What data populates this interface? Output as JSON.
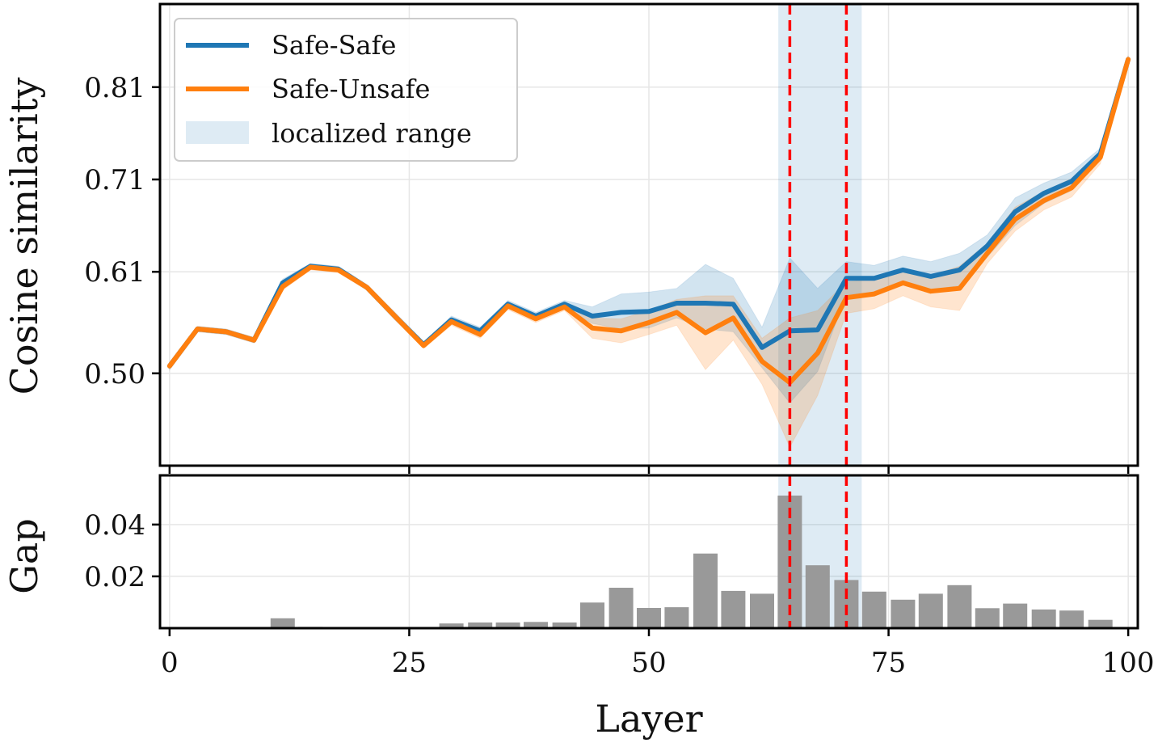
{
  "chart_data": {
    "type": "line",
    "xlabel": "Layer",
    "top_panel": {
      "ylabel": "Cosine similarity",
      "ylim": [
        0.4,
        0.9
      ],
      "yticks": [
        "0.50",
        "0.61",
        "0.71",
        "0.81"
      ],
      "ytick_values": [
        0.5,
        0.61,
        0.71,
        0.81
      ],
      "xlim": [
        -1,
        101
      ],
      "xticks": [
        "0",
        "25",
        "50",
        "75",
        "100"
      ],
      "xtick_values": [
        0,
        25,
        50,
        75,
        100
      ],
      "series": [
        {
          "name": "Safe-Safe",
          "color": "#1f77b4",
          "x": [
            0,
            2.9,
            5.9,
            8.8,
            11.8,
            14.7,
            17.6,
            20.6,
            23.5,
            26.5,
            29.4,
            32.4,
            35.3,
            38.2,
            41.2,
            44.1,
            47.1,
            50,
            52.9,
            55.9,
            58.8,
            61.8,
            64.7,
            67.6,
            70.6,
            73.5,
            76.5,
            79.4,
            82.4,
            85.3,
            88.2,
            91.2,
            94.1,
            97.1,
            100
          ],
          "values": [
            0.508,
            0.548,
            0.545,
            0.536,
            0.598,
            0.616,
            0.613,
            0.593,
            0.562,
            0.531,
            0.558,
            0.546,
            0.575,
            0.562,
            0.575,
            0.562,
            0.566,
            0.567,
            0.576,
            0.576,
            0.575,
            0.528,
            0.546,
            0.547,
            0.603,
            0.603,
            0.612,
            0.605,
            0.612,
            0.638,
            0.675,
            0.695,
            0.708,
            0.738,
            0.84
          ],
          "lower": [
            0.504,
            0.545,
            0.542,
            0.533,
            0.594,
            0.613,
            0.61,
            0.59,
            0.558,
            0.528,
            0.554,
            0.542,
            0.571,
            0.558,
            0.571,
            0.554,
            0.548,
            0.549,
            0.56,
            0.548,
            0.545,
            0.506,
            0.468,
            0.502,
            0.585,
            0.588,
            0.597,
            0.59,
            0.595,
            0.626,
            0.66,
            0.684,
            0.698,
            0.732,
            0.836
          ],
          "upper": [
            0.512,
            0.551,
            0.548,
            0.539,
            0.602,
            0.619,
            0.616,
            0.596,
            0.566,
            0.534,
            0.562,
            0.55,
            0.579,
            0.566,
            0.579,
            0.572,
            0.586,
            0.588,
            0.592,
            0.618,
            0.603,
            0.55,
            0.625,
            0.592,
            0.621,
            0.617,
            0.627,
            0.621,
            0.63,
            0.65,
            0.69,
            0.706,
            0.718,
            0.744,
            0.844
          ]
        },
        {
          "name": "Safe-Unsafe",
          "color": "#ff7f0e",
          "x": [
            0,
            2.9,
            5.9,
            8.8,
            11.8,
            14.7,
            17.6,
            20.6,
            23.5,
            26.5,
            29.4,
            32.4,
            35.3,
            38.2,
            41.2,
            44.1,
            47.1,
            50,
            52.9,
            55.9,
            58.8,
            61.8,
            64.7,
            67.6,
            70.6,
            73.5,
            76.5,
            79.4,
            82.4,
            85.3,
            88.2,
            91.2,
            94.1,
            97.1,
            100
          ],
          "values": [
            0.508,
            0.548,
            0.545,
            0.536,
            0.594,
            0.615,
            0.612,
            0.593,
            0.562,
            0.53,
            0.556,
            0.542,
            0.573,
            0.559,
            0.572,
            0.549,
            0.546,
            0.555,
            0.566,
            0.544,
            0.56,
            0.513,
            0.49,
            0.522,
            0.582,
            0.586,
            0.598,
            0.589,
            0.592,
            0.63,
            0.667,
            0.687,
            0.701,
            0.734,
            0.84
          ],
          "lower": [
            0.504,
            0.545,
            0.542,
            0.533,
            0.59,
            0.612,
            0.609,
            0.59,
            0.558,
            0.527,
            0.552,
            0.538,
            0.569,
            0.555,
            0.568,
            0.538,
            0.533,
            0.542,
            0.552,
            0.504,
            0.536,
            0.488,
            0.42,
            0.476,
            0.565,
            0.57,
            0.584,
            0.572,
            0.568,
            0.619,
            0.654,
            0.677,
            0.691,
            0.727,
            0.836
          ],
          "upper": [
            0.512,
            0.551,
            0.548,
            0.539,
            0.598,
            0.618,
            0.615,
            0.596,
            0.566,
            0.533,
            0.56,
            0.546,
            0.577,
            0.563,
            0.576,
            0.56,
            0.559,
            0.568,
            0.58,
            0.584,
            0.584,
            0.538,
            0.56,
            0.568,
            0.599,
            0.602,
            0.612,
            0.606,
            0.616,
            0.641,
            0.68,
            0.697,
            0.711,
            0.741,
            0.844
          ]
        }
      ],
      "localized_range": {
        "label": "localized range",
        "x0": 63.5,
        "x1": 72.2,
        "color": "#1f77b4"
      },
      "markers": [
        64.7,
        70.6
      ],
      "marker_color": "#ff0000",
      "legend": {
        "position": "top-left",
        "entries": [
          "Safe-Safe",
          "Safe-Unsafe",
          "localized range"
        ]
      }
    },
    "bottom_panel": {
      "ylabel": "Gap",
      "type": "bar",
      "ylim": [
        0,
        0.059
      ],
      "yticks": [
        "0.02",
        "0.04"
      ],
      "ytick_values": [
        0.02,
        0.04
      ],
      "bar_color": "#999999",
      "x": [
        0,
        2.9,
        5.9,
        8.8,
        11.8,
        14.7,
        17.6,
        20.6,
        23.5,
        26.5,
        29.4,
        32.4,
        35.3,
        38.2,
        41.2,
        44.1,
        47.1,
        50,
        52.9,
        55.9,
        58.8,
        61.8,
        64.7,
        67.6,
        70.6,
        73.5,
        76.5,
        79.4,
        82.4,
        85.3,
        88.2,
        91.2,
        94.1,
        97.1,
        100
      ],
      "values": [
        0.0002,
        0.0002,
        0.0002,
        0.0002,
        0.0038,
        0.0005,
        0.0002,
        0.0002,
        0.0002,
        0.0002,
        0.0018,
        0.0022,
        0.0022,
        0.0024,
        0.0022,
        0.0099,
        0.0156,
        0.0078,
        0.0081,
        0.0288,
        0.0144,
        0.0133,
        0.0512,
        0.0243,
        0.0186,
        0.0141,
        0.011,
        0.0133,
        0.0166,
        0.0077,
        0.0095,
        0.0072,
        0.0068,
        0.0032,
        0.0004
      ]
    }
  }
}
